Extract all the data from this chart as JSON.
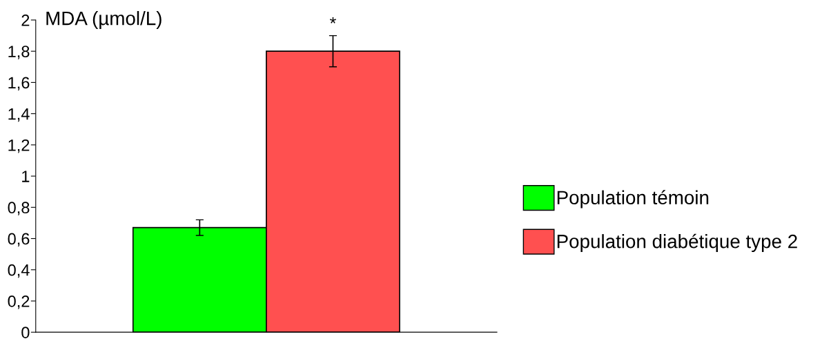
{
  "chart_data": {
    "type": "bar",
    "ylabel": "MDA (µmol/L)",
    "categories": [
      null
    ],
    "series": [
      {
        "name": "Population témoin",
        "color": "#00ff00",
        "values": [
          0.67
        ],
        "errors": [
          0.05
        ]
      },
      {
        "name": "Population diabétique type 2",
        "color": "#ff5050",
        "values": [
          1.8
        ],
        "errors": [
          0.1
        ]
      }
    ],
    "ylim": [
      0,
      2
    ],
    "yticks": [
      0,
      {
        "value": 0.2,
        "label": "0,2"
      },
      {
        "value": 0.4,
        "label": "0,4"
      },
      {
        "value": 0.6,
        "label": "0,6"
      },
      {
        "value": 0.8,
        "label": "0,8"
      },
      1,
      {
        "value": 1.2,
        "label": "1,2"
      },
      {
        "value": 1.4,
        "label": "1,4"
      },
      {
        "value": 1.6,
        "label": "1,6"
      },
      {
        "value": 1.8,
        "label": "1,8"
      },
      2
    ],
    "annotations": [
      "*"
    ],
    "legend": "right",
    "grid": false
  }
}
